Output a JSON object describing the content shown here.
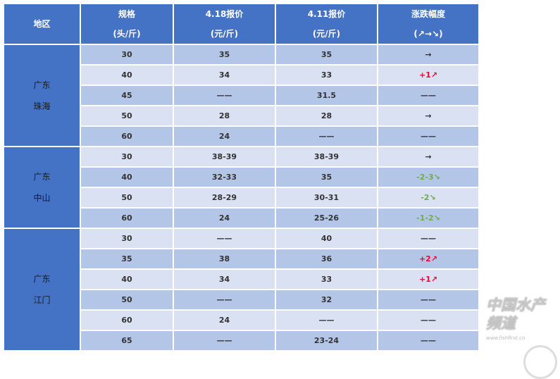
{
  "headers": {
    "region": "地区",
    "spec": "规格",
    "spec_unit": "(头/斤)",
    "p418": "4.18报价",
    "p418_unit": "(元/斤)",
    "p411": "4.11报价",
    "p411_unit": "(元/斤)",
    "change": "涨跌幅度",
    "change_unit": "(↗→↘)"
  },
  "groups": [
    {
      "region": [
        "广东",
        "珠海"
      ],
      "rows": [
        {
          "spec": "30",
          "p418": "35",
          "p411": "35",
          "change": "→",
          "trend": "flat"
        },
        {
          "spec": "40",
          "p418": "34",
          "p411": "33",
          "change": "+1↗",
          "trend": "up"
        },
        {
          "spec": "45",
          "p418": "——",
          "p411": "31.5",
          "change": "——",
          "trend": "none"
        },
        {
          "spec": "50",
          "p418": "28",
          "p411": "28",
          "change": "→",
          "trend": "flat"
        },
        {
          "spec": "60",
          "p418": "24",
          "p411": "——",
          "change": "——",
          "trend": "none"
        }
      ]
    },
    {
      "region": [
        "广东",
        "中山"
      ],
      "rows": [
        {
          "spec": "30",
          "p418": "38-39",
          "p411": "38-39",
          "change": "→",
          "trend": "flat"
        },
        {
          "spec": "40",
          "p418": "32-33",
          "p411": "35",
          "change": "-2-3↘",
          "trend": "down"
        },
        {
          "spec": "50",
          "p418": "28-29",
          "p411": "30-31",
          "change": "-2↘",
          "trend": "down"
        },
        {
          "spec": "60",
          "p418": "24",
          "p411": "25-26",
          "change": "-1-2↘",
          "trend": "down"
        }
      ]
    },
    {
      "region": [
        "广东",
        "江门"
      ],
      "rows": [
        {
          "spec": "30",
          "p418": "——",
          "p411": "40",
          "change": "——",
          "trend": "none"
        },
        {
          "spec": "35",
          "p418": "38",
          "p411": "36",
          "change": "+2↗",
          "trend": "up"
        },
        {
          "spec": "40",
          "p418": "34",
          "p411": "33",
          "change": "+1↗",
          "trend": "up"
        },
        {
          "spec": "50",
          "p418": "——",
          "p411": "32",
          "change": "——",
          "trend": "none"
        },
        {
          "spec": "60",
          "p418": "24",
          "p411": "——",
          "change": "——",
          "trend": "none"
        },
        {
          "spec": "65",
          "p418": "——",
          "p411": "23-24",
          "change": "——",
          "trend": "none"
        }
      ]
    }
  ],
  "watermark": {
    "title": "中国水产频道",
    "url": "www.fishfirst.cn"
  },
  "colors": {
    "header": "#4472c4",
    "row_dark": "#b4c6e7",
    "row_light": "#d9e1f2",
    "up": "#ff0033",
    "down": "#70ad47"
  }
}
